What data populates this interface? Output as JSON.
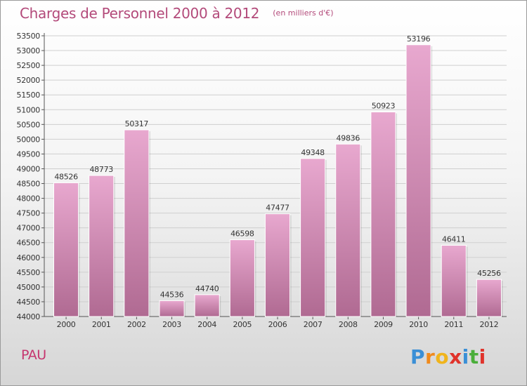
{
  "title": "Charges de Personnel 2000 à 2012",
  "subtitle": "(en milliers d'€)",
  "city": "PAU",
  "logo_text": "Proxiti",
  "colors": {
    "title": "#b34a7a",
    "bar_top": "#e8a8cf",
    "bar_bottom": "#b06a92",
    "city": "#c6356e"
  },
  "chart_data": {
    "type": "bar",
    "title": "Charges de Personnel 2000 à 2012",
    "subtitle": "(en milliers d'€)",
    "categories": [
      "2000",
      "2001",
      "2002",
      "2003",
      "2004",
      "2005",
      "2006",
      "2007",
      "2008",
      "2009",
      "2010",
      "2011",
      "2012"
    ],
    "values": [
      48526,
      48773,
      50317,
      44536,
      44740,
      46598,
      47477,
      49348,
      49836,
      50923,
      53196,
      46411,
      45256
    ],
    "ylim": [
      44000,
      53500
    ],
    "ytick_step": 500,
    "grid": true,
    "data_labels": true,
    "legend": "none"
  }
}
